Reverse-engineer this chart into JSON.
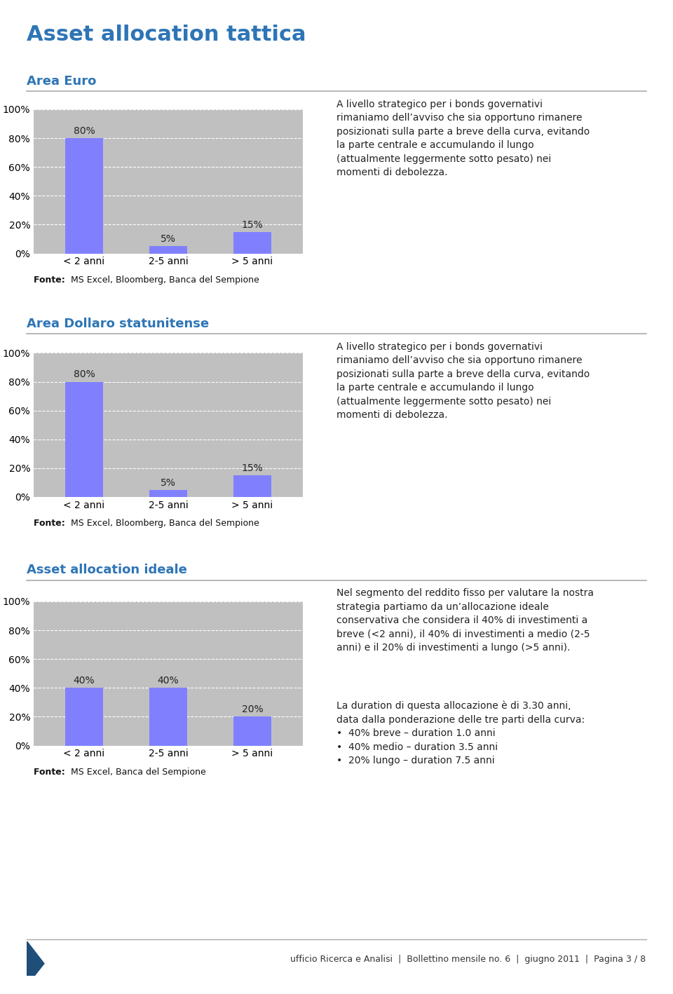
{
  "main_title": "Asset allocation tattica",
  "main_title_color": "#2E75B6",
  "main_title_fontsize": 22,
  "section1_title": "Area Euro",
  "section2_title": "Area Dollaro statunitense",
  "section3_title": "Asset allocation ideale",
  "section_title_color": "#2E75B6",
  "section_title_fontsize": 13,
  "chart1": {
    "categories": [
      "< 2 anni",
      "2-5 anni",
      "> 5 anni"
    ],
    "values": [
      80,
      5,
      15
    ],
    "bar_color": "#8080FF",
    "bar_color2": "#9999FF",
    "ylim": [
      0,
      100
    ],
    "yticks": [
      0,
      20,
      40,
      60,
      80,
      100
    ],
    "ytick_labels": [
      "0%",
      "20%",
      "40%",
      "60%",
      "80%",
      "100%"
    ],
    "bg_color": "#C0C0C0",
    "fonte": "Fonte: MS Excel, Bloomberg, Banca del Sempione"
  },
  "chart2": {
    "categories": [
      "< 2 anni",
      "2-5 anni",
      "> 5 anni"
    ],
    "values": [
      80,
      5,
      15
    ],
    "bar_color": "#8080FF",
    "ylim": [
      0,
      100
    ],
    "yticks": [
      0,
      20,
      40,
      60,
      80,
      100
    ],
    "ytick_labels": [
      "0%",
      "20%",
      "40%",
      "60%",
      "80%",
      "100%"
    ],
    "bg_color": "#C0C0C0",
    "fonte": "Fonte: MS Excel, Bloomberg, Banca del Sempione"
  },
  "chart3": {
    "categories": [
      "< 2 anni",
      "2-5 anni",
      "> 5 anni"
    ],
    "values": [
      40,
      40,
      20
    ],
    "bar_color": "#8080FF",
    "ylim": [
      0,
      100
    ],
    "yticks": [
      0,
      20,
      40,
      60,
      80,
      100
    ],
    "ytick_labels": [
      "0%",
      "20%",
      "40%",
      "60%",
      "80%",
      "100%"
    ],
    "bg_color": "#C0C0C0",
    "fonte": "Fonte: MS Excel, Banca del Sempione"
  },
  "text1": "A livello strategico per i bonds governativi\nrimaniamo dell’avviso che sia opportuno rimanere\nposizionati sulla parte a breve della curva, evitando\nla parte centrale e accumulando il lungo\n(attualmente leggermente sotto pesato) nei\nmomenti di debolezza.",
  "text2": "A livello strategico per i bonds governativi\nrimaniamo dell’avviso che sia opportuno rimanere\nposizionati sulla parte a breve della curva, evitando\nla parte centrale e accumulando il lungo\n(attualmente leggermente sotto pesato) nei\nmomenti di debolezza.",
  "text3a": "Nel segmento del reddito fisso per valutare la nostra\nstrategia partiamo da un’allocazione ideale\nconservativa che considera il 40% di investimenti a\nbreve (<2 anni), il 40% di investimenti a medio (2-5\nanni) e il 20% di investimenti a lungo (>5 anni).",
  "text3b": "La duration di questa allocazione è di 3.30 anni,\ndata dalla ponderazione delle tre parti della curva:\n•  40% breve – duration 1.0 anni\n•  40% medio – duration 3.5 anni\n•  20% lungo – duration 7.5 anni",
  "footer_text": "ufficio Ricerca e Analisi  |  Bollettino mensile no. 6  |  giugno 2011  |  Pagina 3 / 8",
  "footer_color": "#333333",
  "footer_fontsize": 9,
  "text_fontsize": 10,
  "text_color": "#222222",
  "fonte_bold": "Fonte:",
  "fonte_color": "#111111"
}
